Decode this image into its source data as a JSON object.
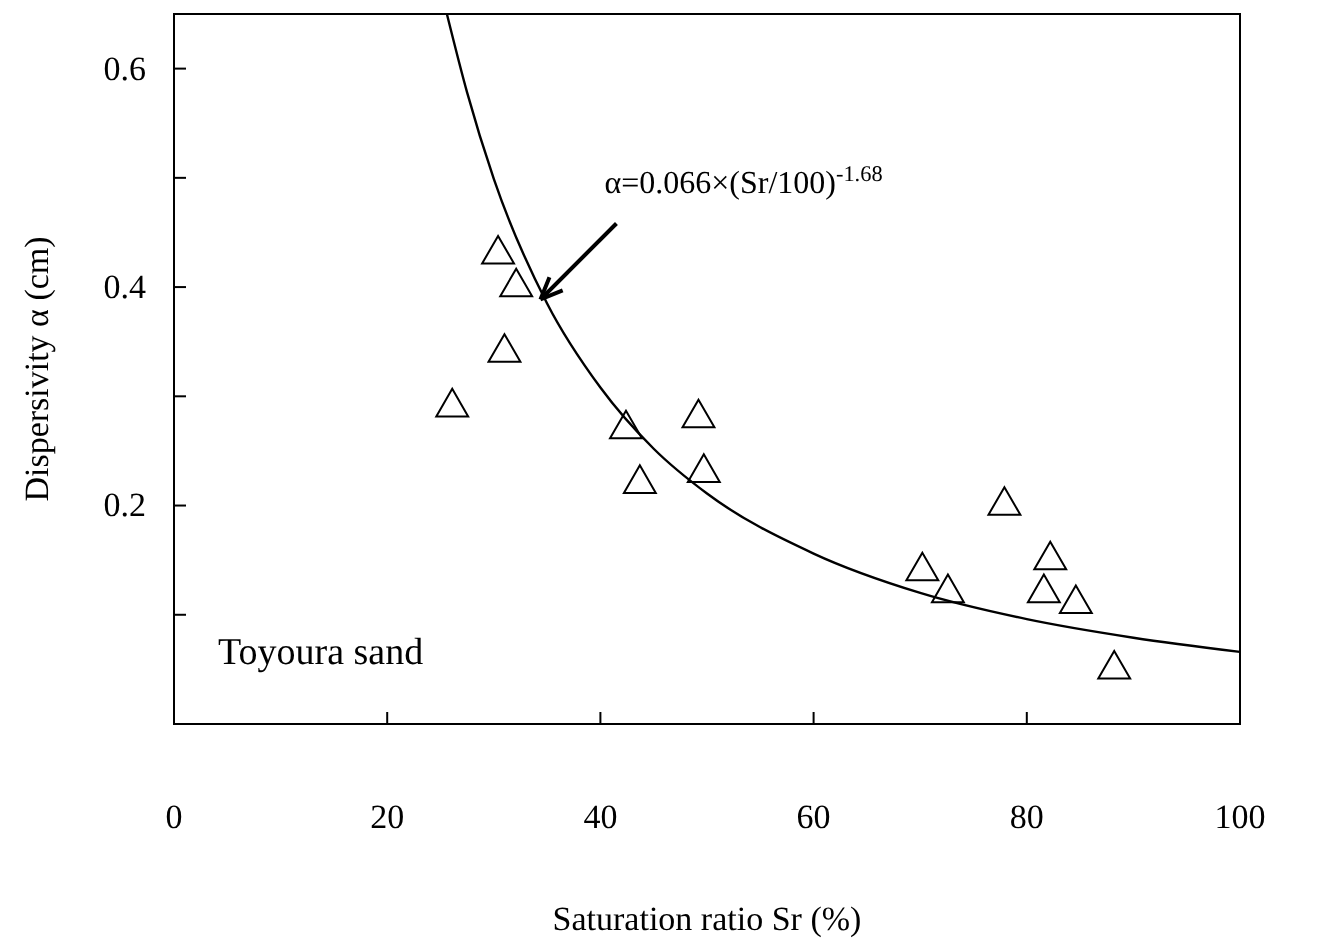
{
  "chart_data": {
    "type": "scatter",
    "xlabel": "Saturation ratio Sr (%)",
    "ylabel": "Dispersivity α (cm)",
    "xlim": [
      0,
      100
    ],
    "ylim": [
      0,
      0.65
    ],
    "xticks": [
      0,
      20,
      40,
      60,
      80,
      100
    ],
    "yticks": [
      {
        "value": 0.1,
        "label": null
      },
      0.2,
      {
        "value": 0.3,
        "label": null
      },
      0.4,
      {
        "value": 0.5,
        "label": null
      },
      0.6
    ],
    "marker": "triangle",
    "series": [
      {
        "color": "#000000",
        "x": [
          26.1,
          30.4,
          32.1,
          31.0,
          42.4,
          43.7,
          49.2,
          49.7,
          70.2,
          72.6,
          77.9,
          82.2,
          81.6,
          84.6,
          88.2
        ],
        "values": [
          0.29,
          0.43,
          0.4,
          0.34,
          0.27,
          0.22,
          0.28,
          0.23,
          0.14,
          0.12,
          0.2,
          0.15,
          0.12,
          0.11,
          0.05
        ]
      },
      {
        "type": "line",
        "color": "#000000",
        "marker": "none",
        "line_style": "solid",
        "x": [
          25.6,
          27.5,
          30,
          35,
          40,
          45,
          50,
          60,
          70,
          80,
          90,
          100
        ],
        "values": [
          0.65,
          0.578,
          0.499,
          0.385,
          0.308,
          0.252,
          0.211,
          0.156,
          0.12,
          0.096,
          0.079,
          0.066
        ]
      }
    ],
    "annotations": [
      {
        "text": "α=0.066×(Sr/100)$^{-1.68}$",
        "x": 34,
        "y": 0.385
      },
      "Toyoura sand"
    ]
  }
}
